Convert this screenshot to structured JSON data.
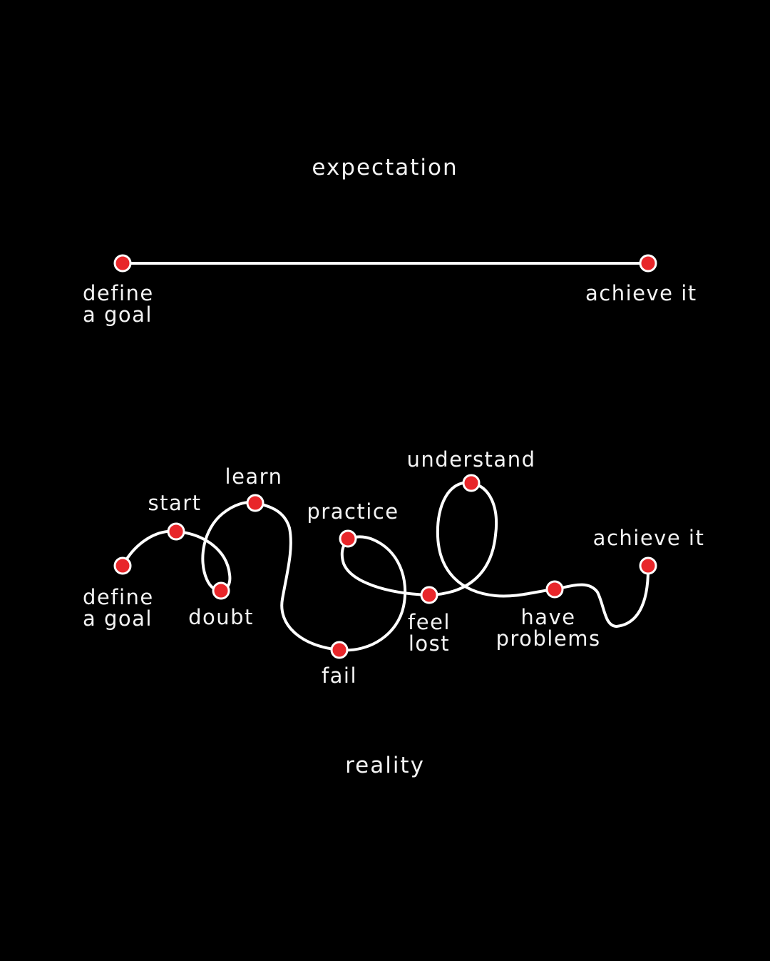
{
  "expectation": {
    "title": "expectation",
    "start_label": [
      "define",
      "a goal"
    ],
    "end_label": "achieve it"
  },
  "reality": {
    "title": "reality",
    "steps": {
      "define": [
        "define",
        "a goal"
      ],
      "start": "start",
      "doubt": "doubt",
      "learn": "learn",
      "fail": "fail",
      "practice": "practice",
      "feel_lost": [
        "feel",
        "lost"
      ],
      "understand": "understand",
      "have_problems": [
        "have",
        "problems"
      ],
      "achieve": "achieve it"
    }
  },
  "colors": {
    "background": "#000000",
    "line": "#ffffff",
    "dot": "#e8262a",
    "dot_outline": "#ffffff",
    "text": "#f4f4f4"
  }
}
